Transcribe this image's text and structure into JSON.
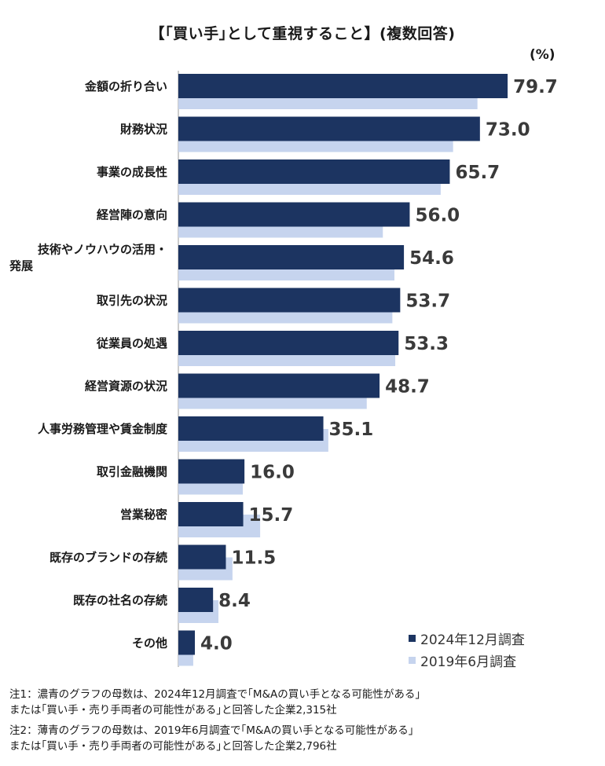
{
  "chart_data": {
    "type": "bar",
    "orientation": "horizontal",
    "title": "【｢買い手｣として重視すること】(複数回答)",
    "unit": "(%)",
    "xlim": [
      0,
      100
    ],
    "grid": false,
    "legend_position": "bottom-right",
    "categories": [
      [
        "金額の折り合い"
      ],
      [
        "財務状況"
      ],
      [
        "事業の成長性"
      ],
      [
        "経営陣の意向"
      ],
      [
        "技術やノウハウの活用・",
        "発展"
      ],
      [
        "取引先の状況"
      ],
      [
        "従業員の処遇"
      ],
      [
        "経営資源の状況"
      ],
      [
        "人事労務管理や賃金制度"
      ],
      [
        "取引金融機関"
      ],
      [
        "営業秘密"
      ],
      [
        "既存のブランドの存続"
      ],
      [
        "既存の社名の存続"
      ],
      [
        "その他"
      ]
    ],
    "series": [
      {
        "name": "2024年12月調査",
        "color": "#1c3461",
        "values": [
          79.7,
          73.0,
          65.7,
          56.0,
          54.6,
          53.7,
          53.3,
          48.7,
          35.1,
          16.0,
          15.7,
          11.5,
          8.4,
          4.0
        ],
        "labels": [
          "79.7",
          "73.0",
          "65.7",
          "56.0",
          "54.6",
          "53.7",
          "53.3",
          "48.7",
          "35.1",
          "16.0",
          "15.7",
          "11.5",
          "8.4",
          "4.0"
        ]
      },
      {
        "name": "2019年6月調査",
        "color": "#c6d4ee",
        "values": [
          72.4,
          66.5,
          63.5,
          49.5,
          52.3,
          51.8,
          52.5,
          45.6,
          36.3,
          15.6,
          19.8,
          13.1,
          9.7,
          3.6
        ]
      }
    ]
  },
  "notes": [
    [
      "注1：濃青のグラフの母数は、2024年12月調査で｢M&Aの買い手となる可能性がある｣",
      "または｢買い手・売り手両者の可能性がある｣と回答した企業2,315社"
    ],
    [
      "注2：薄青のグラフの母数は、2019年6月調査で｢M&Aの買い手となる可能性がある｣",
      "または｢買い手・売り手両者の可能性がある｣と回答した企業2,796社"
    ]
  ]
}
